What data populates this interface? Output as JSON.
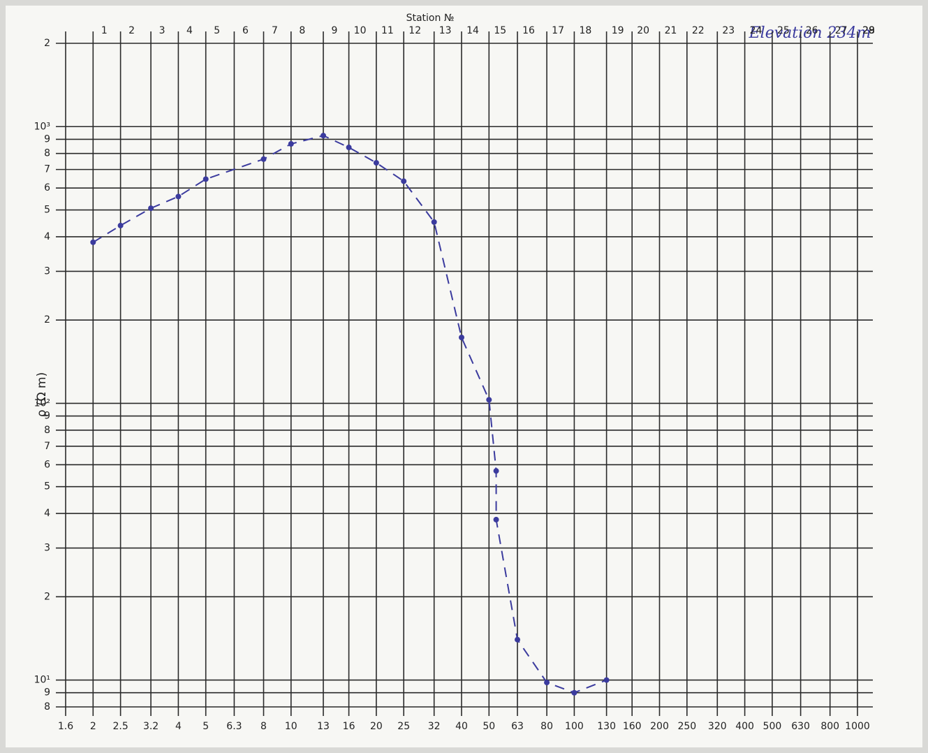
{
  "chart_data": {
    "type": "line",
    "title": "Station №",
    "y_label": "ρ (Ω m)",
    "annotation": "Elevation 234m",
    "log_x": true,
    "log_y": true,
    "grid": true,
    "stations": [
      1,
      2,
      3,
      4,
      5,
      6,
      7,
      8,
      9,
      10,
      11,
      12,
      13,
      14,
      15,
      16,
      17,
      18,
      19,
      20,
      21,
      22,
      23,
      24,
      25,
      26,
      27,
      28,
      29
    ],
    "xlim": [
      1.6,
      1000
    ],
    "ylim": [
      8,
      2000
    ],
    "xticks": [
      1.6,
      2,
      2.5,
      3.2,
      4,
      5,
      6.3,
      8,
      10,
      13,
      16,
      20,
      25,
      32,
      40,
      50,
      63,
      80,
      100,
      130,
      160,
      200,
      250,
      320,
      400,
      500,
      630,
      800,
      1000
    ],
    "yticks": [
      8,
      9,
      {
        "value": 10,
        "label": "10¹"
      },
      {
        "value": 20,
        "label": "2"
      },
      {
        "value": 30,
        "label": "3"
      },
      {
        "value": 40,
        "label": "4"
      },
      {
        "value": 50,
        "label": "5"
      },
      {
        "value": 60,
        "label": "6"
      },
      {
        "value": 70,
        "label": "7"
      },
      {
        "value": 80,
        "label": "8"
      },
      {
        "value": 90,
        "label": "9"
      },
      {
        "value": 100,
        "label": "10²"
      },
      {
        "value": 200,
        "label": "2"
      },
      {
        "value": 300,
        "label": "3"
      },
      {
        "value": 400,
        "label": "4"
      },
      {
        "value": 500,
        "label": "5"
      },
      {
        "value": 600,
        "label": "6"
      },
      {
        "value": 700,
        "label": "7"
      },
      {
        "value": 800,
        "label": "8"
      },
      {
        "value": 900,
        "label": "9"
      },
      {
        "value": 1000,
        "label": "10³"
      },
      {
        "value": 2000,
        "label": "2"
      }
    ],
    "x": [
      2,
      2.5,
      3.2,
      4,
      5,
      8,
      10,
      13,
      16,
      20,
      25,
      32,
      40,
      50,
      53,
      53,
      63,
      80,
      100,
      130
    ],
    "series": [
      {
        "name": "VES curve",
        "color": "#3b3b9e",
        "values": [
          382,
          439,
          507,
          559,
          646,
          763,
          866,
          928,
          841,
          740,
          635,
          452,
          173,
          103,
          57,
          38,
          14,
          9.8,
          9,
          10
        ]
      }
    ]
  }
}
